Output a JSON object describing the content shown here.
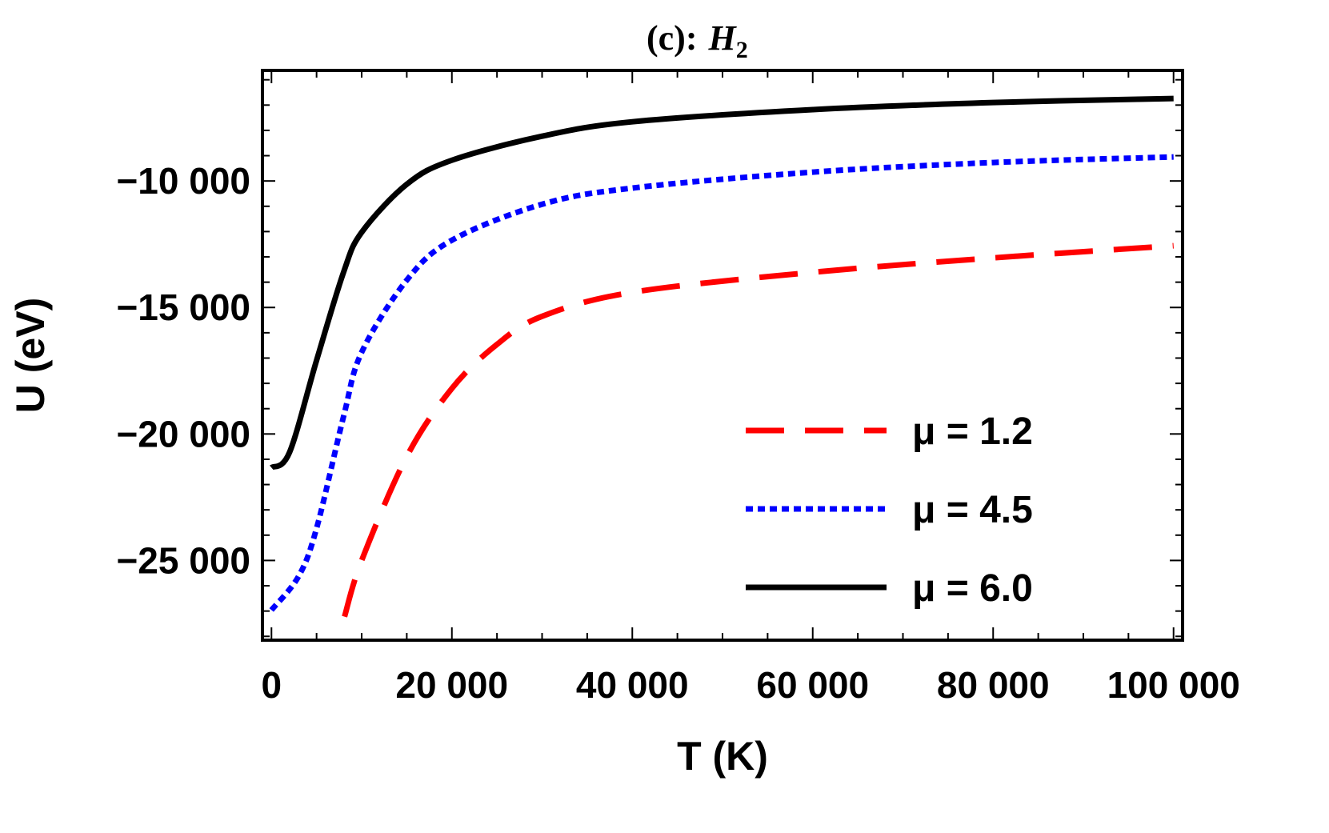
{
  "chart_data": {
    "type": "line",
    "title": "(c):",
    "title_symbol": "H",
    "title_subscript": "2",
    "xlabel": "T (K)",
    "ylabel": "U (eV)",
    "xlim": [
      -1000,
      101000
    ],
    "ylim": [
      -28150,
      -5630
    ],
    "xticks": [
      0,
      20000,
      40000,
      60000,
      80000,
      100000
    ],
    "xtick_labels": [
      "0",
      "20 000",
      "40 000",
      "60 000",
      "80 000",
      "100 000"
    ],
    "yticks": [
      -10000,
      -15000,
      -20000,
      -25000
    ],
    "ytick_labels": [
      "−10 000",
      "−15 000",
      "−20 000",
      "−25 000"
    ],
    "grid": false,
    "legend_position": "bottom-right",
    "series": [
      {
        "name": "μ = 1.2",
        "color": "#ff0000",
        "style": "dashed",
        "x": [
          8100,
          10000,
          15000,
          20000,
          25000,
          30000,
          40000,
          60000,
          80000,
          100000
        ],
        "y": [
          -27220,
          -25000,
          -20890,
          -18200,
          -16460,
          -15350,
          -14400,
          -13610,
          -13040,
          -12560
        ]
      },
      {
        "name": "μ = 4.5",
        "color": "#0000ff",
        "style": "dotted",
        "x": [
          0,
          3000,
          5000,
          8000,
          10000,
          15000,
          20000,
          30000,
          40000,
          60000,
          80000,
          100000
        ],
        "y": [
          -26960,
          -25630,
          -23730,
          -19300,
          -16770,
          -13920,
          -12340,
          -10920,
          -10280,
          -9650,
          -9270,
          -9050
        ]
      },
      {
        "name": "μ = 6.0",
        "color": "#000000",
        "style": "solid",
        "x": [
          0,
          2000,
          5000,
          8000,
          10000,
          15000,
          20000,
          30000,
          40000,
          60000,
          80000,
          100000
        ],
        "y": [
          -21330,
          -20730,
          -17090,
          -13600,
          -12030,
          -10130,
          -9180,
          -8230,
          -7660,
          -7180,
          -6900,
          -6740
        ]
      }
    ]
  }
}
